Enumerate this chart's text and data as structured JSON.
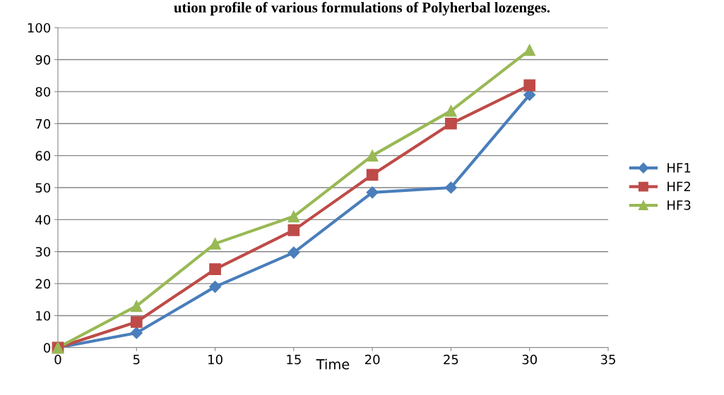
{
  "chart_data": {
    "type": "line",
    "title": "ution profile of various formulations of Polyherbal lozenges.",
    "xlabel": "Time",
    "x": [
      0,
      5,
      10,
      15,
      20,
      25,
      30
    ],
    "series": [
      {
        "name": "HF1",
        "color": "#4a7ebb",
        "marker": "diamond",
        "values": [
          0,
          4.6,
          19,
          29.7,
          48.5,
          50,
          79
        ]
      },
      {
        "name": "HF2",
        "color": "#be4b48",
        "marker": "square",
        "values": [
          0,
          8,
          24.5,
          36.7,
          54,
          70,
          82
        ]
      },
      {
        "name": "HF3",
        "color": "#98b954",
        "marker": "triangle",
        "values": [
          0,
          13,
          32.5,
          41,
          60,
          74,
          93
        ]
      }
    ],
    "xlim": [
      0,
      35
    ],
    "xticks": [
      0,
      5,
      10,
      15,
      20,
      25,
      30,
      35
    ],
    "ylim": [
      0,
      100
    ],
    "yticks": [
      0,
      10,
      20,
      30,
      40,
      50,
      60,
      70,
      80,
      90,
      100
    ],
    "grid": "y",
    "legend": "right",
    "line_style": "solid"
  }
}
